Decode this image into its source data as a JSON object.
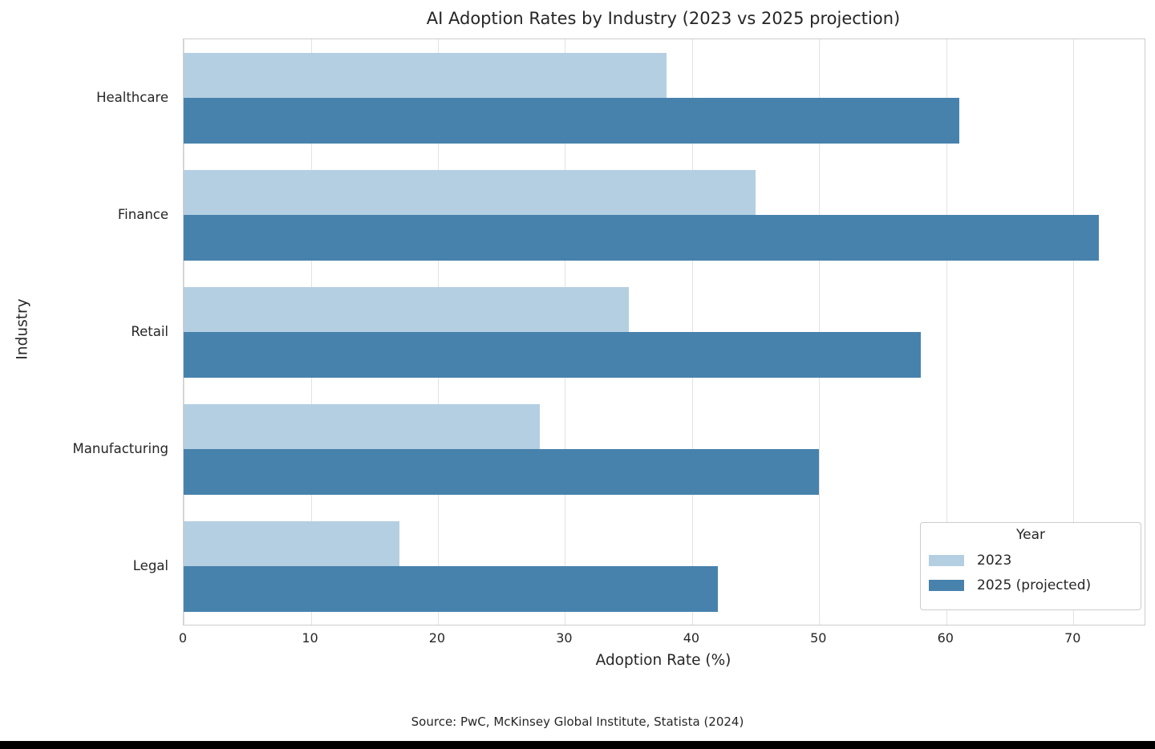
{
  "chart_data": {
    "type": "bar",
    "orientation": "horizontal",
    "title": "AI Adoption Rates by Industry (2023 vs 2025 projection)",
    "xlabel": "Adoption Rate (%)",
    "ylabel": "Industry",
    "categories": [
      "Healthcare",
      "Finance",
      "Retail",
      "Manufacturing",
      "Legal"
    ],
    "series": [
      {
        "name": "2023",
        "color": "#b4cfe1",
        "values": [
          38,
          45,
          35,
          28,
          17
        ]
      },
      {
        "name": "2025 (projected)",
        "color": "#4782ad",
        "values": [
          61,
          72,
          58,
          50,
          42
        ]
      }
    ],
    "xlim": [
      0,
      75.6
    ],
    "xticks": [
      0,
      10,
      20,
      30,
      40,
      50,
      60,
      70
    ],
    "grid": "vertical",
    "legend_title": "Year",
    "legend_position": "lower right",
    "source_note": "Source: PwC, McKinsey Global Institute, Statista (2024)"
  },
  "colors": {
    "grid": "#e2e2e2",
    "spine": "#cccccc",
    "text": "#262626",
    "bottom_strip": "#000000"
  }
}
